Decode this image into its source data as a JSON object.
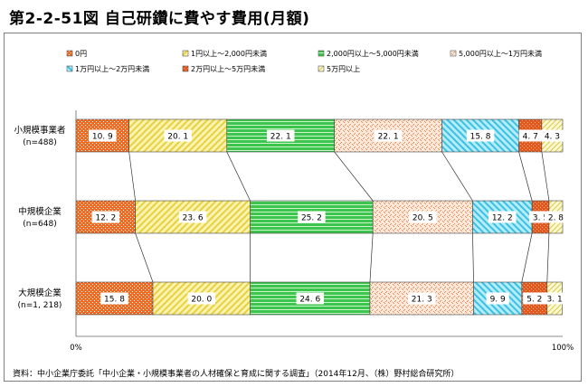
{
  "title": "第2-2-51図 自己研鑽に費やす費用(月額)",
  "source": "資料：中小企業庁委託「中小企業・小規模事業者の人材確保と育成に関する調査」（2014年12月、（株）野村総合研究所）",
  "colors": {
    "0円": "#f26a22",
    "1円以上～2,000円未満": "#f2e050",
    "2,000円以上～5,000円未満": "#4cd454",
    "5,000円以上～1万円未満": "#f4a070",
    "1万円以上～2万円未満": "#5ccfea",
    "2万円以上～5万円未満": "#e05a20",
    "5万円以上": "#eee070"
  },
  "chart_data": {
    "type": "bar",
    "orientation": "horizontal",
    "stacked": "percent",
    "categories": [
      {
        "name": "小規模事業者",
        "n": "(n=488)"
      },
      {
        "name": "中規模企業",
        "n": "(n=648)"
      },
      {
        "name": "大規模企業",
        "n": "(n=1, 218)"
      }
    ],
    "series": [
      {
        "name": "0円",
        "values": [
          10.9,
          12.2,
          15.8
        ],
        "labels": [
          "10. 9",
          "12. 2",
          "15. 8"
        ]
      },
      {
        "name": "1円以上～2,000円未満",
        "values": [
          20.1,
          23.6,
          20.0
        ],
        "labels": [
          "20. 1",
          "23. 6",
          "20. 0"
        ]
      },
      {
        "name": "2,000円以上～5,000円未満",
        "values": [
          22.1,
          25.2,
          24.6
        ],
        "labels": [
          "22. 1",
          "25. 2",
          "24. 6"
        ]
      },
      {
        "name": "5,000円以上～1万円未満",
        "values": [
          22.1,
          20.5,
          21.3
        ],
        "labels": [
          "22. 1",
          "20. 5",
          "21. 3"
        ]
      },
      {
        "name": "1万円以上～2万円未満",
        "values": [
          15.8,
          12.2,
          9.9
        ],
        "labels": [
          "15. 8",
          "12. 2",
          "9. 9"
        ]
      },
      {
        "name": "2万円以上～5万円未満",
        "values": [
          4.7,
          3.5,
          5.2
        ],
        "labels": [
          "4. 7",
          "3. 5",
          "5. 2"
        ]
      },
      {
        "name": "5万円以上",
        "values": [
          4.3,
          2.8,
          3.1
        ],
        "labels": [
          "4. 3",
          "2. 8",
          "3. 1"
        ]
      }
    ],
    "legend_labels": [
      "0円",
      "1円以上～2,000円未満",
      "2,000円以上～5,000円未満",
      "5,000円以上～1万円未満",
      "1万円以上～2万円未満",
      "2万円以上～5万円未満",
      "5万円以上"
    ],
    "xlim": [
      0,
      100
    ],
    "x_tick_labels": [
      "0%",
      "100%"
    ],
    "legend": "top",
    "grid": false
  }
}
